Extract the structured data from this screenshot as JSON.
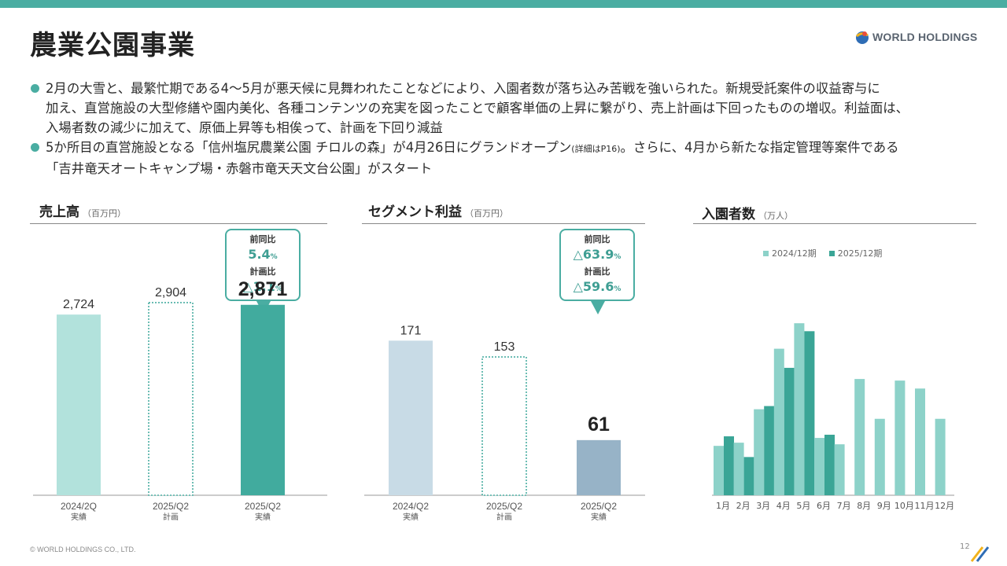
{
  "page": {
    "title": "農業公園事業",
    "logo_text": "WORLD HOLDINGS",
    "footer": "© WORLD HOLDINGS CO., LTD.",
    "page_number": "12",
    "accent_color": "#4aada2"
  },
  "bullets": [
    {
      "line1": "2月の大雪と、最繁忙期である4～5月が悪天候に見舞われたことなどにより、入園者数が落ち込み苦戦を強いられた。新規受託案件の収益寄与に",
      "line2": "加え、直営施設の大型修繕や園内美化、各種コンテンツの充実を図ったことで顧客単価の上昇に繋がり、売上計画は下回ったものの増収。利益面は、",
      "line3": "入場者数の減少に加えて、原価上昇等も相俟って、計画を下回り減益"
    },
    {
      "line1_a": "5か所目の直営施設となる「信州塩尻農業公園 チロルの森」が4月26日にグランドオープン",
      "line1_small": "(詳細はP16)",
      "line1_b": "。さらに、4月から新たな指定管理等案件である",
      "line2": "「吉井竜天オートキャンプ場・赤磐市竜天天文台公園」がスタート"
    }
  ],
  "sections": {
    "sales": {
      "title": "売上高",
      "unit": "（百万円）",
      "callout": {
        "label1": "前同比",
        "value1": "5.4",
        "label2": "計画比",
        "value2": "△1.1",
        "pct": "%"
      }
    },
    "segment": {
      "title": "セグメント利益",
      "unit": "（百万円）",
      "callout": {
        "label1": "前同比",
        "value1": "△63.9",
        "label2": "計画比",
        "value2": "△59.6",
        "pct": "%"
      }
    },
    "visitors": {
      "title": "入園者数",
      "unit": "（万人）"
    }
  },
  "chart_data": [
    {
      "type": "bar",
      "title": "売上高",
      "categories": [
        "2024/2Q",
        "2025/Q2",
        "2025/Q2"
      ],
      "sublabels": [
        "実績",
        "計画",
        "実績"
      ],
      "values": [
        2724,
        2904,
        2871
      ],
      "value_labels": [
        "2,724",
        "2,904",
        "2,871"
      ],
      "styles": [
        "actual-light",
        "plan-dotted",
        "actual-dark"
      ],
      "colors": {
        "actual-light": "#b2e2dc",
        "plan-dotted": "#4aada2",
        "actual-dark": "#41ab9e"
      },
      "ylim": [
        0,
        3200
      ]
    },
    {
      "type": "bar",
      "title": "セグメント利益",
      "categories": [
        "2024/Q2",
        "2025/Q2",
        "2025/Q2"
      ],
      "sublabels": [
        "実績",
        "計画",
        "実績"
      ],
      "values": [
        171,
        153,
        61
      ],
      "value_labels": [
        "171",
        "153",
        "61"
      ],
      "styles": [
        "actual-light",
        "plan-dotted",
        "actual-dark"
      ],
      "colors": {
        "actual-light": "#c8dbe6",
        "plan-dotted": "#4aada2",
        "actual-dark": "#97b3c7"
      },
      "ylim": [
        0,
        200
      ]
    },
    {
      "type": "bar",
      "title": "入園者数",
      "categories": [
        "1月",
        "2月",
        "3月",
        "4月",
        "5月",
        "6月",
        "7月",
        "8月",
        "9月",
        "10月",
        "11月",
        "12月"
      ],
      "series": [
        {
          "name": "2024/12期",
          "color": "#8dd2c9",
          "values": [
            3.1,
            3.3,
            5.4,
            9.2,
            10.8,
            3.6,
            3.2,
            7.3,
            4.8,
            7.2,
            6.7,
            4.8
          ]
        },
        {
          "name": "2025/12期",
          "color": "#3aa596",
          "values": [
            3.7,
            2.4,
            5.6,
            8.0,
            10.3,
            3.8,
            null,
            null,
            null,
            null,
            null,
            null
          ]
        }
      ],
      "ylim": [
        0,
        11.5
      ],
      "legend": "top"
    }
  ]
}
